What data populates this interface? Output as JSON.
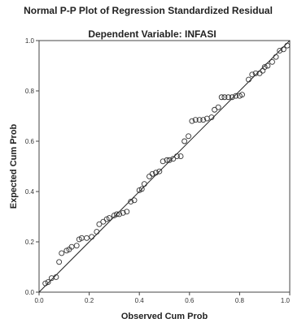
{
  "chart_data": {
    "type": "scatter",
    "title": "Normal P-P Plot of Regression Standardized Residual",
    "subtitle": "Dependent Variable: INFASI",
    "xlabel": "Observed Cum Prob",
    "ylabel": "Expected Cum Prob",
    "xlim": [
      0,
      1
    ],
    "ylim": [
      0,
      1
    ],
    "x_ticks": [
      "0.0",
      "0.2",
      "0.4",
      "0.6",
      "0.8",
      "1.0"
    ],
    "y_ticks": [
      "0.0",
      "0.2",
      "0.4",
      "0.6",
      "0.8",
      "1.0"
    ],
    "reference_line": [
      [
        0,
        0
      ],
      [
        1,
        1
      ]
    ],
    "marker": "open-circle",
    "grid": false,
    "colors": {
      "marker": "#333333",
      "line": "#222222",
      "frame": "#444444",
      "background": "#ffffff"
    },
    "points": [
      [
        0.025,
        0.035
      ],
      [
        0.036,
        0.04
      ],
      [
        0.05,
        0.056
      ],
      [
        0.068,
        0.06
      ],
      [
        0.08,
        0.12
      ],
      [
        0.09,
        0.155
      ],
      [
        0.11,
        0.165
      ],
      [
        0.12,
        0.17
      ],
      [
        0.13,
        0.18
      ],
      [
        0.15,
        0.185
      ],
      [
        0.16,
        0.21
      ],
      [
        0.17,
        0.215
      ],
      [
        0.19,
        0.215
      ],
      [
        0.21,
        0.22
      ],
      [
        0.23,
        0.24
      ],
      [
        0.24,
        0.27
      ],
      [
        0.256,
        0.28
      ],
      [
        0.27,
        0.29
      ],
      [
        0.28,
        0.295
      ],
      [
        0.3,
        0.305
      ],
      [
        0.31,
        0.31
      ],
      [
        0.32,
        0.31
      ],
      [
        0.335,
        0.315
      ],
      [
        0.35,
        0.32
      ],
      [
        0.366,
        0.36
      ],
      [
        0.38,
        0.365
      ],
      [
        0.4,
        0.405
      ],
      [
        0.41,
        0.41
      ],
      [
        0.42,
        0.43
      ],
      [
        0.44,
        0.46
      ],
      [
        0.452,
        0.47
      ],
      [
        0.466,
        0.475
      ],
      [
        0.48,
        0.48
      ],
      [
        0.494,
        0.52
      ],
      [
        0.51,
        0.525
      ],
      [
        0.52,
        0.525
      ],
      [
        0.535,
        0.53
      ],
      [
        0.55,
        0.54
      ],
      [
        0.565,
        0.54
      ],
      [
        0.58,
        0.6
      ],
      [
        0.596,
        0.62
      ],
      [
        0.61,
        0.68
      ],
      [
        0.624,
        0.685
      ],
      [
        0.64,
        0.685
      ],
      [
        0.655,
        0.685
      ],
      [
        0.67,
        0.69
      ],
      [
        0.688,
        0.695
      ],
      [
        0.7,
        0.725
      ],
      [
        0.715,
        0.735
      ],
      [
        0.728,
        0.775
      ],
      [
        0.74,
        0.775
      ],
      [
        0.755,
        0.775
      ],
      [
        0.77,
        0.775
      ],
      [
        0.785,
        0.78
      ],
      [
        0.8,
        0.78
      ],
      [
        0.81,
        0.785
      ],
      [
        0.836,
        0.845
      ],
      [
        0.85,
        0.865
      ],
      [
        0.864,
        0.87
      ],
      [
        0.88,
        0.87
      ],
      [
        0.892,
        0.88
      ],
      [
        0.9,
        0.895
      ],
      [
        0.912,
        0.9
      ],
      [
        0.93,
        0.915
      ],
      [
        0.945,
        0.935
      ],
      [
        0.96,
        0.96
      ],
      [
        0.975,
        0.965
      ],
      [
        0.99,
        0.98
      ]
    ]
  }
}
